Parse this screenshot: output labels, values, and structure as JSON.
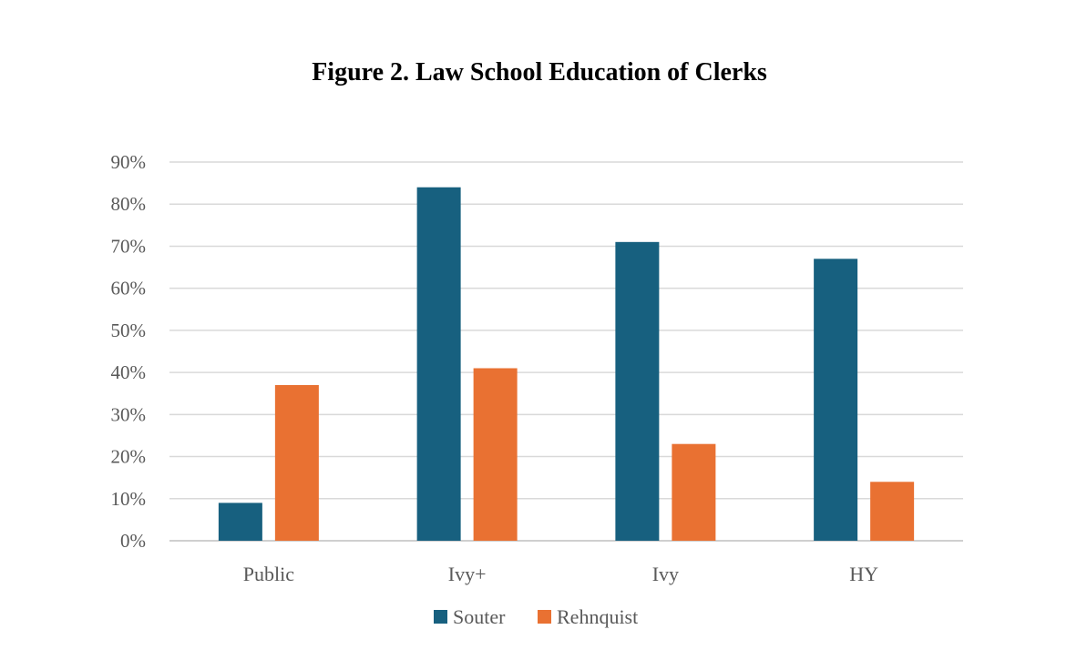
{
  "chart_data": {
    "type": "bar",
    "title": "Figure 2. Law School Education of Clerks",
    "xlabel": "",
    "ylabel": "",
    "categories": [
      "Public",
      "Ivy+",
      "Ivy",
      "HY"
    ],
    "series": [
      {
        "name": "Souter",
        "values": [
          9,
          84,
          71,
          67
        ],
        "color": "#17607f"
      },
      {
        "name": "Rehnquist",
        "values": [
          37,
          41,
          23,
          14
        ],
        "color": "#e97132"
      }
    ],
    "ylim": [
      0,
      90
    ],
    "yticks": [
      0,
      10,
      20,
      30,
      40,
      50,
      60,
      70,
      80,
      90
    ],
    "ytick_labels": [
      "0%",
      "10%",
      "20%",
      "30%",
      "40%",
      "50%",
      "60%",
      "70%",
      "80%",
      "90%"
    ],
    "grid": true,
    "legend_position": "bottom"
  }
}
